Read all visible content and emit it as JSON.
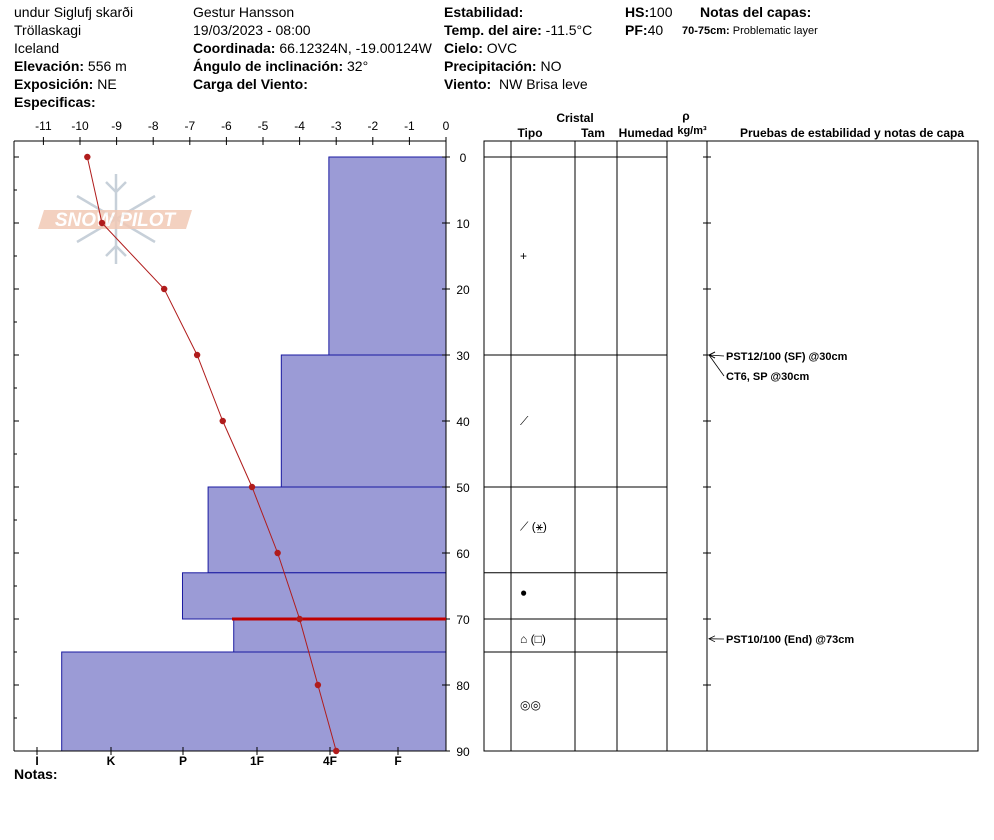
{
  "header": {
    "location": "undur Siglufj skarði",
    "region": "Tröllaskagi",
    "country": "Iceland",
    "elevation_label": "Elevación:",
    "elevation": "556 m",
    "aspect_label": "Exposición:",
    "aspect": "NE",
    "specifics_label": "Especificas:",
    "observer": "Gestur Hansson",
    "datetime": "19/03/2023 - 08:00",
    "coord_label": "Coordinada:",
    "coord": "66.12324N, -19.00124W",
    "slope_label": "Ángulo de inclinación:",
    "slope": "32°",
    "wind_load_label": "Carga del Viento:",
    "stability_label": "Estabilidad:",
    "air_temp_label": "Temp. del aire:",
    "air_temp": "-11.5°C",
    "sky_label": "Cielo:",
    "sky": "OVC",
    "precip_label": "Precipitación:",
    "precip": "NO",
    "wind_label": "Viento:",
    "wind": "NW Brisa leve",
    "hs_label": "HS:",
    "hs": "100",
    "pf_label": "PF:",
    "pf": "40",
    "layer_notes_label": "Notas del capas:",
    "layer_note_range": "70-75cm:",
    "layer_note_text": "Problematic layer"
  },
  "logo_text": "SNOW PILOT",
  "notes_label": "Notas:",
  "table_headers": {
    "crystal": "Cristal",
    "type": "Tipo",
    "size": "Tam",
    "moisture": "Humedad",
    "rho": "ρ",
    "density_unit": "kg/m³",
    "tests": "Pruebas de estabilidad y notas de capa"
  },
  "crystal_symbols": [
    {
      "depth": 15,
      "symbol": "+"
    },
    {
      "depth": 40,
      "symbol": "⟋"
    },
    {
      "depth": 56,
      "symbol": "⟋ (⚹̲)"
    },
    {
      "depth": 66,
      "symbol": "●"
    },
    {
      "depth": 73,
      "symbol": "⌂ (□)"
    },
    {
      "depth": 83,
      "symbol": "◎◎"
    }
  ],
  "test_notes": [
    {
      "depth": 30,
      "text": "PST12/100 (SF) @30cm"
    },
    {
      "depth": 30,
      "text": "CT6, SP @30cm"
    },
    {
      "depth": 73,
      "text": "PST10/100 (End) @73cm"
    }
  ],
  "chart_data": {
    "type": "line",
    "temp_axis": {
      "ticks": [
        -11,
        -10,
        -9,
        -8,
        -7,
        -6,
        -5,
        -4,
        -3,
        -2,
        -1,
        0
      ],
      "range": [
        -11.2,
        0
      ]
    },
    "depth_axis": {
      "ticks": [
        0,
        10,
        20,
        30,
        40,
        50,
        60,
        70,
        80,
        90
      ],
      "range": [
        -2,
        90
      ]
    },
    "hardness_axis": {
      "labels": [
        "I",
        "K",
        "P",
        "1F",
        "4F",
        "F"
      ]
    },
    "temperature_profile": {
      "depth": [
        0,
        10,
        20,
        30,
        40,
        50,
        60,
        70,
        80,
        90
      ],
      "temperature": [
        -9.8,
        -9.4,
        -7.7,
        -6.8,
        -6.1,
        -5.3,
        -4.6,
        -4.0,
        -3.5,
        -3.0
      ]
    },
    "layers": [
      {
        "top": 0,
        "bottom": 30,
        "hardness": -3.2
      },
      {
        "top": 30,
        "bottom": 50,
        "hardness": -4.5
      },
      {
        "top": 50,
        "bottom": 63,
        "hardness": -6.5
      },
      {
        "top": 63,
        "bottom": 70,
        "hardness": -7.2
      },
      {
        "top": 70,
        "bottom": 75,
        "hardness": -5.8
      },
      {
        "top": 75,
        "bottom": 90,
        "hardness": -10.5
      }
    ],
    "highlight_depth": 70,
    "colors": {
      "layer_fill": "#9b9bd6",
      "layer_edge": "#1a1aa0",
      "temp_line": "#b01c1c",
      "highlight": "#c00000"
    }
  }
}
